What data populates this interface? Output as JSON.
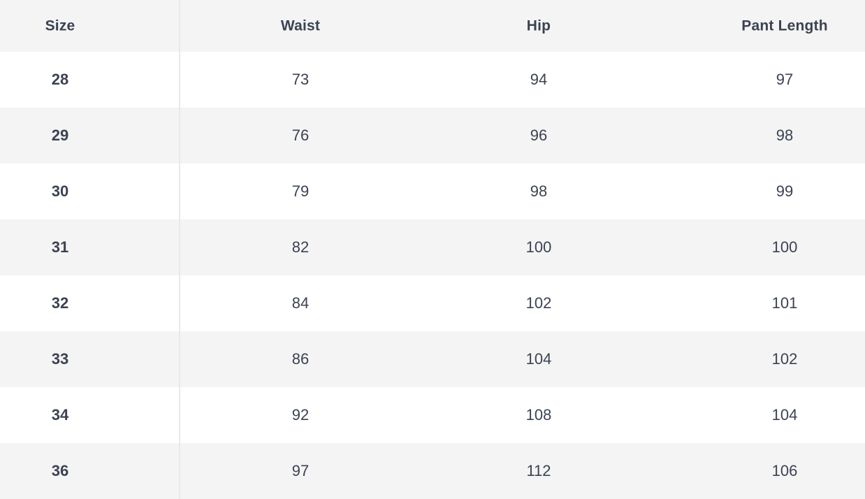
{
  "table": {
    "columns": [
      "Size",
      "Waist",
      "Hip",
      "Pant Length"
    ],
    "rows": [
      {
        "size": "28",
        "waist": "73",
        "hip": "94",
        "pant_length": "97"
      },
      {
        "size": "29",
        "waist": "76",
        "hip": "96",
        "pant_length": "98"
      },
      {
        "size": "30",
        "waist": "79",
        "hip": "98",
        "pant_length": "99"
      },
      {
        "size": "31",
        "waist": "82",
        "hip": "100",
        "pant_length": "100"
      },
      {
        "size": "32",
        "waist": "84",
        "hip": "102",
        "pant_length": "101"
      },
      {
        "size": "33",
        "waist": "86",
        "hip": "104",
        "pant_length": "102"
      },
      {
        "size": "34",
        "waist": "92",
        "hip": "108",
        "pant_length": "104"
      },
      {
        "size": "36",
        "waist": "97",
        "hip": "112",
        "pant_length": "106"
      }
    ]
  },
  "colors": {
    "text": "#3b4251",
    "stripe_background": "#f4f4f5",
    "header_background": "#f4f4f5",
    "divider": "#e9e9ec",
    "row_background": "#ffffff"
  }
}
